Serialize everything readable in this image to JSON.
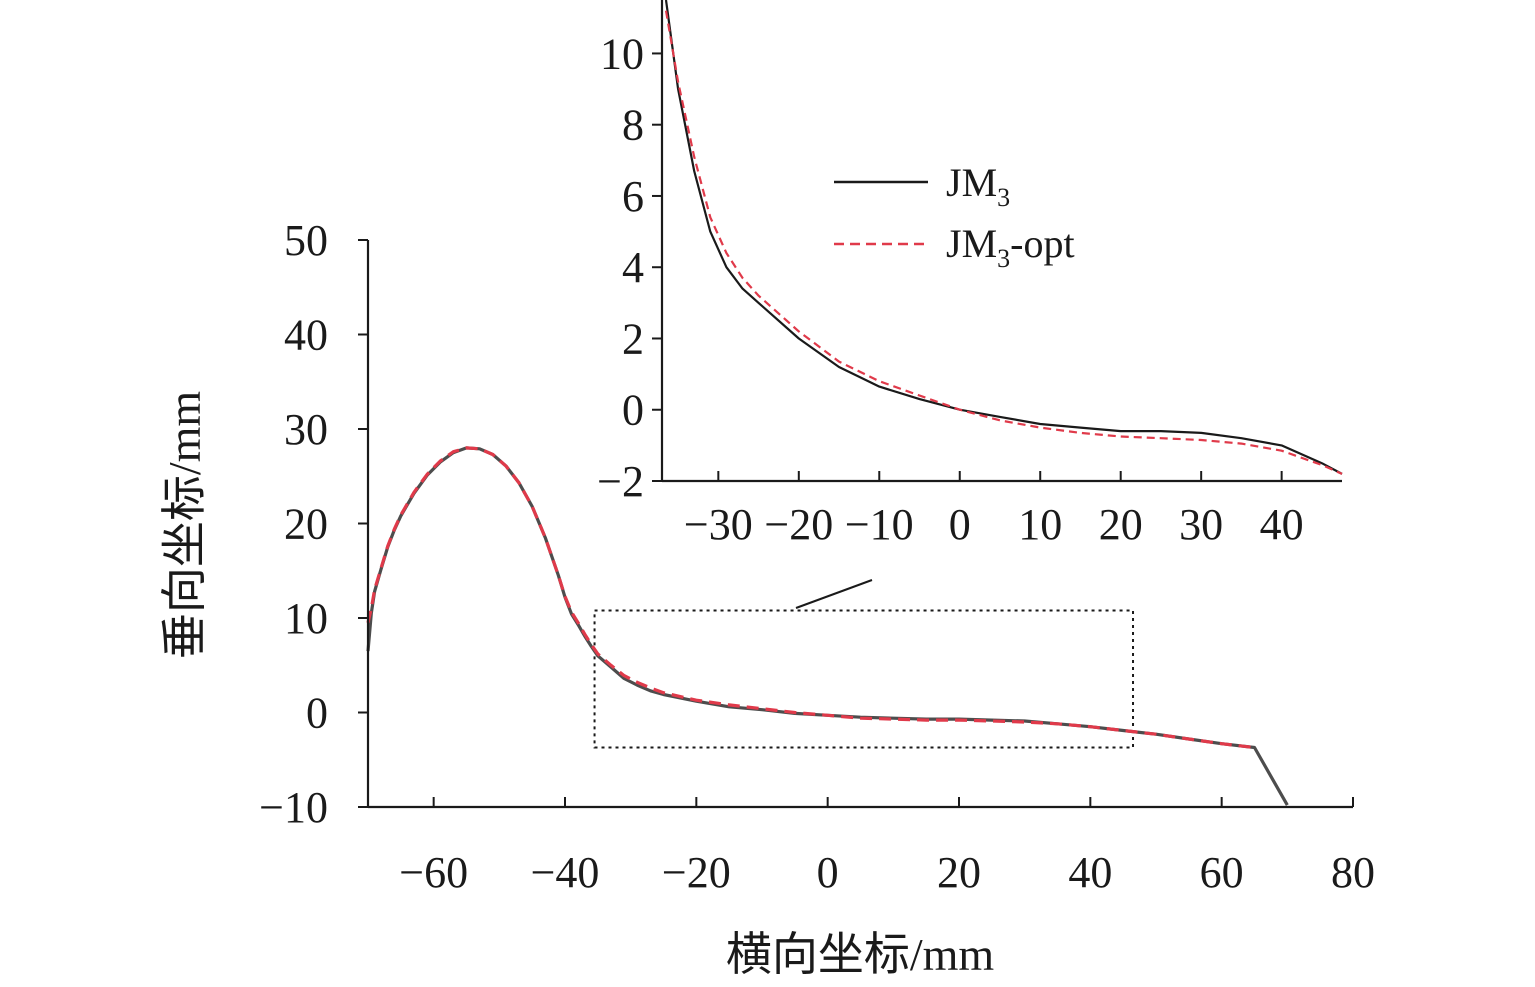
{
  "colors": {
    "background": "#ffffff",
    "axis": "#1a1a1a",
    "series_JM3": "#1a1a1a",
    "series_JM3_opt": "#e03a4a",
    "series_JM3_main": "#4d4d4d",
    "zoom_box": "#1a1a1a"
  },
  "chart_data": [
    {
      "type": "line",
      "xlabel": "横向坐标/mm",
      "ylabel": "垂向坐标/mm",
      "xlim": [
        -70,
        80
      ],
      "ylim": [
        -10,
        50
      ],
      "xticks": [
        -60,
        -40,
        -20,
        0,
        20,
        40,
        60,
        80
      ],
      "yticks": [
        -10,
        0,
        10,
        20,
        30,
        40,
        50
      ],
      "xtick_labels": [
        "−60",
        "−40",
        "−20",
        "0",
        "20",
        "40",
        "60",
        "80"
      ],
      "ytick_labels": [
        "−10",
        "0",
        "10",
        "20",
        "30",
        "40",
        "50"
      ],
      "grid": false,
      "zoom_region": {
        "x": [
          -35.5,
          46.5
        ],
        "y": [
          -3.7,
          10.8
        ]
      },
      "series": [
        {
          "style": "solid",
          "x": [
            -70,
            -69.5,
            -69,
            -68,
            -67,
            -66,
            -65,
            -63,
            -61,
            -59,
            -57,
            -55,
            -53,
            -51,
            -49,
            -47,
            -45,
            -43,
            -41,
            -40,
            -39,
            -38,
            -37,
            -36,
            -35,
            -33,
            -31,
            -29,
            -27,
            -25,
            -20,
            -15,
            -10,
            -5,
            0,
            5,
            10,
            15,
            20,
            25,
            30,
            35,
            40,
            45,
            50,
            55,
            60,
            65,
            70
          ],
          "y": [
            6.5,
            10.5,
            12.8,
            15.2,
            17.5,
            19.3,
            20.8,
            23.2,
            25.1,
            26.5,
            27.5,
            28,
            27.9,
            27.3,
            26.1,
            24.3,
            21.8,
            18.5,
            14.5,
            12.2,
            10.4,
            9.3,
            8.1,
            7.0,
            6.0,
            4.8,
            3.6,
            2.9,
            2.3,
            1.9,
            1.2,
            0.6,
            0.3,
            -0.1,
            -0.3,
            -0.5,
            -0.6,
            -0.7,
            -0.7,
            -0.8,
            -0.9,
            -1.2,
            -1.5,
            -1.9,
            -2.3,
            -2.8,
            -3.3,
            -3.7,
            -9.8
          ]
        },
        {
          "style": "dashed",
          "x": [
            -70,
            -69.5,
            -69,
            -68,
            -67,
            -66,
            -65,
            -63,
            -61,
            -59,
            -57,
            -55,
            -53,
            -51,
            -49,
            -47,
            -45,
            -43,
            -41,
            -40,
            -39,
            -38,
            -37,
            -36,
            -35,
            -33,
            -31,
            -29,
            -27,
            -25,
            -20,
            -15,
            -10,
            -5,
            0,
            5,
            10,
            15,
            20,
            25,
            30,
            35,
            40,
            45,
            50,
            55,
            60,
            65
          ],
          "y": [
            9.5,
            11,
            13,
            15.3,
            17.6,
            19.4,
            20.9,
            23.3,
            25.2,
            26.6,
            27.6,
            28,
            27.9,
            27.3,
            26.1,
            24.3,
            21.8,
            18.5,
            14.5,
            12.3,
            10.6,
            9.5,
            8.3,
            7.2,
            6.2,
            5.0,
            3.9,
            3.2,
            2.6,
            2.1,
            1.3,
            0.8,
            0.4,
            0,
            -0.3,
            -0.6,
            -0.7,
            -0.8,
            -0.8,
            -0.9,
            -1,
            -1.2,
            -1.5,
            -1.9,
            -2.3,
            -2.8,
            -3.3,
            -3.7
          ]
        }
      ]
    },
    {
      "type": "line",
      "xlim": [
        -37,
        47.5
      ],
      "ylim": [
        -2,
        11.5
      ],
      "xticks": [
        -30,
        -20,
        -10,
        0,
        10,
        20,
        30,
        40
      ],
      "yticks": [
        -2,
        0,
        2,
        4,
        6,
        8,
        10
      ],
      "xtick_labels": [
        "−30",
        "−20",
        "−10",
        "0",
        "10",
        "20",
        "30",
        "40"
      ],
      "ytick_labels": [
        "−2",
        "0",
        "2",
        "4",
        "6",
        "8",
        "10"
      ],
      "grid": false,
      "legend": {
        "placement": "top-center",
        "entries": [
          {
            "base": "JM",
            "sub": "3",
            "suffix": "",
            "style": "solid"
          },
          {
            "base": "JM",
            "sub": "3",
            "suffix": "-opt",
            "style": "dashed"
          }
        ]
      },
      "series": [
        {
          "style": "solid",
          "x": [
            -36.5,
            -35,
            -33,
            -31,
            -29,
            -27,
            -25,
            -20,
            -15,
            -10,
            -5,
            0,
            5,
            10,
            15,
            20,
            25,
            30,
            35,
            40,
            45,
            47.5
          ],
          "y": [
            11.5,
            9,
            6.7,
            5,
            4,
            3.4,
            3.0,
            2.0,
            1.2,
            0.65,
            0.3,
            0.0,
            -0.2,
            -0.4,
            -0.5,
            -0.6,
            -0.6,
            -0.65,
            -0.8,
            -1.0,
            -1.5,
            -1.8
          ]
        },
        {
          "style": "dashed",
          "x": [
            -36.5,
            -35,
            -33,
            -31,
            -29,
            -27,
            -25,
            -20,
            -15,
            -10,
            -5,
            0,
            5,
            10,
            15,
            20,
            25,
            30,
            35,
            40,
            45,
            47.5
          ],
          "y": [
            11.2,
            9.2,
            7.1,
            5.4,
            4.4,
            3.7,
            3.2,
            2.2,
            1.35,
            0.8,
            0.4,
            0.0,
            -0.3,
            -0.5,
            -0.65,
            -0.75,
            -0.8,
            -0.85,
            -0.95,
            -1.15,
            -1.55,
            -1.8
          ]
        }
      ]
    }
  ]
}
